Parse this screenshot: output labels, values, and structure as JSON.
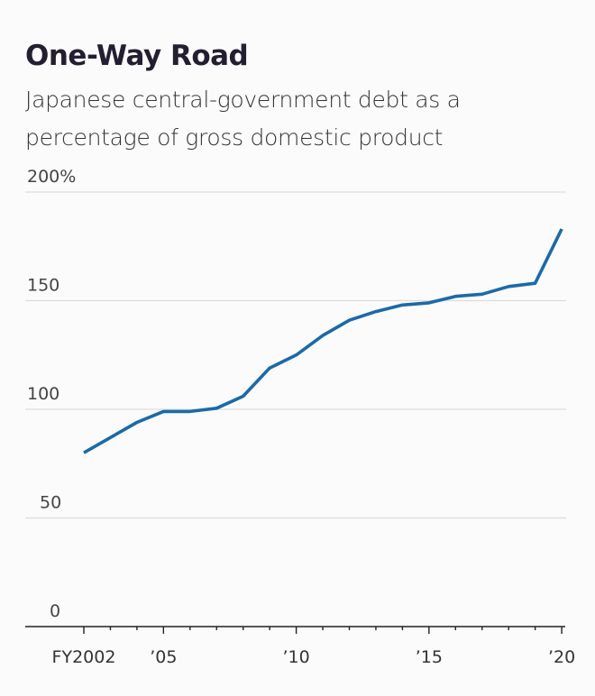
{
  "chart_data": {
    "type": "line",
    "title": "One-Way Road",
    "subtitle": "Japanese central-government debt as a percentage of gross domestic product",
    "xlabel": "",
    "ylabel": "",
    "x": [
      2002,
      2003,
      2004,
      2005,
      2006,
      2007,
      2008,
      2009,
      2010,
      2011,
      2012,
      2013,
      2014,
      2015,
      2016,
      2017,
      2018,
      2019,
      2020
    ],
    "series": [
      {
        "name": "Central-government debt (% of GDP)",
        "color": "#1b6aa8",
        "values": [
          80,
          87,
          94,
          99,
          99,
          100.5,
          106,
          119,
          125,
          134,
          141,
          145,
          148,
          149,
          152,
          153,
          156.5,
          158,
          183
        ]
      }
    ],
    "ylim": [
      0,
      200
    ],
    "xlim": [
      2001,
      2020.2
    ],
    "yticks": [
      {
        "value": 0,
        "label": "0"
      },
      {
        "value": 50,
        "label": "50"
      },
      {
        "value": 100,
        "label": "100"
      },
      {
        "value": 150,
        "label": "150"
      },
      {
        "value": 200,
        "label": "200%"
      }
    ],
    "xticks_labeled": [
      {
        "value": 2002,
        "label": "FY2002"
      },
      {
        "value": 2005,
        "label": "’05"
      },
      {
        "value": 2010,
        "label": "’10"
      },
      {
        "value": 2015,
        "label": "’15"
      },
      {
        "value": 2020,
        "label": "’20"
      }
    ],
    "grid": true,
    "legend": "none"
  }
}
